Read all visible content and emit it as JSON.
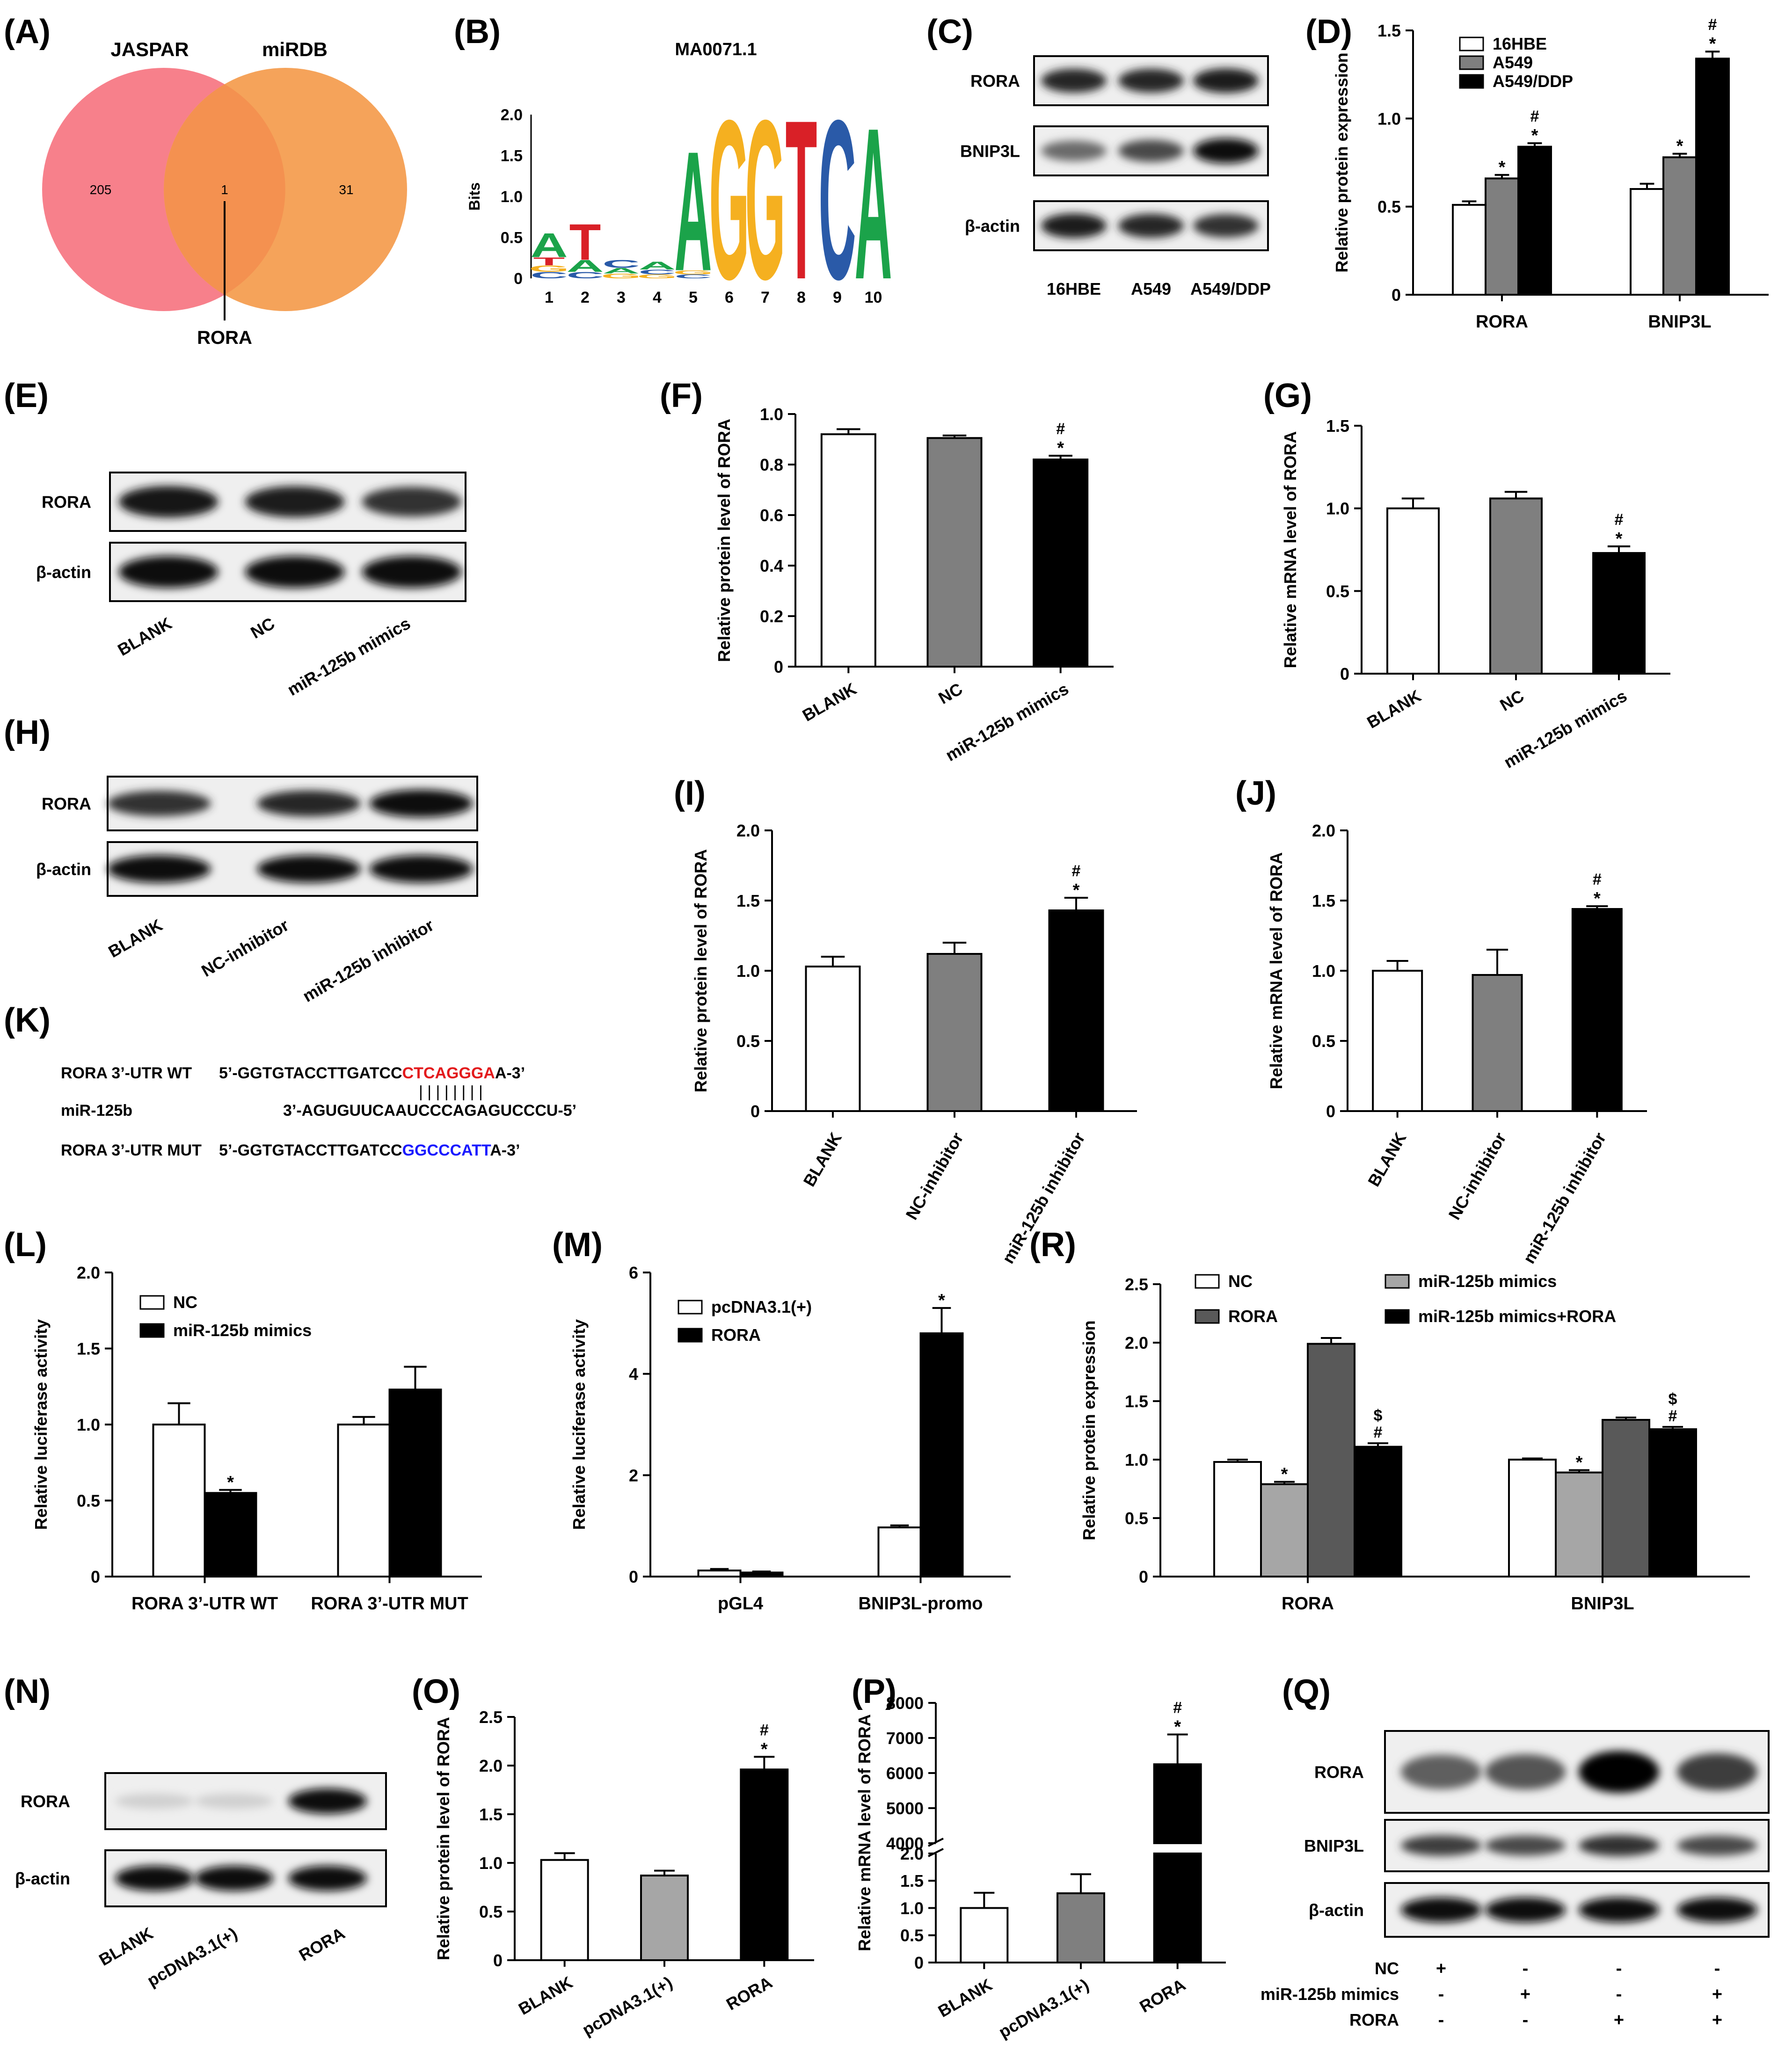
{
  "figure": {
    "panel_labels": [
      "(A)",
      "(B)",
      "(C)",
      "(D)",
      "(E)",
      "(F)",
      "(G)",
      "(H)",
      "(I)",
      "(J)",
      "(K)",
      "(L)",
      "(M)",
      "(R)",
      "(N)",
      "(O)",
      "(P)",
      "(Q)"
    ]
  },
  "colors": {
    "white": "#ffffff",
    "grey": "#7f7f7f",
    "light_grey": "#a6a6a6",
    "dark_grey": "#595959",
    "black": "#000000",
    "venn_left": "#f7808b",
    "venn_right": "#f5a35a",
    "venn_overlap": "#f49150",
    "mut_blue": "#1a1aff",
    "seed_red": "#e31a1c"
  },
  "venn": {
    "left_label": "JASPAR",
    "right_label": "miRDB",
    "left_only": "205",
    "overlap": "1",
    "right_only": "31",
    "callout": "RORA"
  },
  "logo": {
    "title": "MA0071.1",
    "ylabel": "Bits",
    "yticks": [
      "0",
      "0.5",
      "1.0",
      "1.5",
      "2.0"
    ],
    "positions": [
      "1",
      "2",
      "3",
      "4",
      "5",
      "6",
      "7",
      "8",
      "9",
      "10"
    ],
    "letters": [
      {
        "pos": 1,
        "stack": [
          {
            "ch": "C",
            "bits": 0.08
          },
          {
            "ch": "G",
            "bits": 0.08
          },
          {
            "ch": "T",
            "bits": 0.1
          },
          {
            "ch": "A",
            "bits": 0.3
          }
        ]
      },
      {
        "pos": 2,
        "stack": [
          {
            "ch": "C",
            "bits": 0.08
          },
          {
            "ch": "A",
            "bits": 0.15
          },
          {
            "ch": "T",
            "bits": 0.45
          }
        ]
      },
      {
        "pos": 3,
        "stack": [
          {
            "ch": "G",
            "bits": 0.06
          },
          {
            "ch": "A",
            "bits": 0.07
          },
          {
            "ch": "C",
            "bits": 0.1
          }
        ]
      },
      {
        "pos": 4,
        "stack": [
          {
            "ch": "G",
            "bits": 0.05
          },
          {
            "ch": "C",
            "bits": 0.06
          },
          {
            "ch": "A",
            "bits": 0.1
          }
        ]
      },
      {
        "pos": 5,
        "stack": [
          {
            "ch": "C",
            "bits": 0.05
          },
          {
            "ch": "G",
            "bits": 0.05
          },
          {
            "ch": "A",
            "bits": 1.5
          }
        ]
      },
      {
        "pos": 6,
        "stack": [
          {
            "ch": "G",
            "bits": 2.0
          }
        ]
      },
      {
        "pos": 7,
        "stack": [
          {
            "ch": "G",
            "bits": 2.0
          }
        ]
      },
      {
        "pos": 8,
        "stack": [
          {
            "ch": "T",
            "bits": 2.0
          }
        ]
      },
      {
        "pos": 9,
        "stack": [
          {
            "ch": "C",
            "bits": 2.0
          }
        ]
      },
      {
        "pos": 10,
        "stack": [
          {
            "ch": "A",
            "bits": 1.9
          }
        ]
      }
    ],
    "letter_colors": {
      "A": "#1ba34a",
      "C": "#2a5aa8",
      "G": "#f5b020",
      "T": "#d92027"
    }
  },
  "blots": {
    "C": {
      "rows": [
        "RORA",
        "BNIP3L",
        "β-actin"
      ],
      "lanes": [
        "16HBE",
        "A549",
        "A549/DDP"
      ]
    },
    "E": {
      "rows": [
        "RORA",
        "β-actin"
      ],
      "lanes": [
        "BLANK",
        "NC",
        "miR-125b mimics"
      ]
    },
    "H": {
      "rows": [
        "RORA",
        "β-actin"
      ],
      "lanes": [
        "BLANK",
        "NC-inhibitor",
        "miR-125b inhibitor"
      ]
    },
    "N": {
      "rows": [
        "RORA",
        "β-actin"
      ],
      "lanes": [
        "BLANK",
        "pcDNA3.1(+)",
        "RORA"
      ]
    },
    "Q": {
      "rows": [
        "RORA",
        "BNIP3L",
        "β-actin"
      ],
      "conditions": [
        {
          "label": "NC",
          "marks": [
            "+",
            "-",
            "-",
            "-"
          ]
        },
        {
          "label": "miR-125b mimics",
          "marks": [
            "-",
            "+",
            "-",
            "+"
          ]
        },
        {
          "label": "RORA",
          "marks": [
            "-",
            "-",
            "+",
            "+"
          ]
        }
      ]
    }
  },
  "sequences": {
    "wt_label": "RORA 3’-UTR WT",
    "wt_prefix": "5’-GGTGTACCTTGATCC",
    "wt_seed": "CTCAGGGA",
    "wt_suffix": "A-3’",
    "mir_label": "miR-125b",
    "mir_seq": "3’-AGUGUUCAAUCCCAGAGUCCCU-5’",
    "pairing": "| | | | | | | |",
    "mut_label": "RORA 3’-UTR MUT",
    "mut_prefix": "5’-GGTGTACCTTGATCC",
    "mut_seed": "GGCCCATT",
    "mut_suffix": "A-3’"
  },
  "chart_data": [
    {
      "panel": "D",
      "type": "bar",
      "ylabel": "Relative protein expression",
      "ylim": [
        0,
        1.5
      ],
      "yticks": [
        "0",
        "0.5",
        "1.0",
        "1.5"
      ],
      "categories": [
        "RORA",
        "BNIP3L"
      ],
      "series": [
        {
          "name": "16HBE",
          "fill": "white",
          "values": [
            0.51,
            0.6
          ],
          "errors": [
            0.02,
            0.03
          ],
          "marks": [
            "",
            ""
          ]
        },
        {
          "name": "A549",
          "fill": "grey",
          "values": [
            0.66,
            0.78
          ],
          "errors": [
            0.02,
            0.02
          ],
          "marks": [
            "*",
            "*"
          ]
        },
        {
          "name": "A549/DDP",
          "fill": "black",
          "values": [
            0.84,
            1.34
          ],
          "errors": [
            0.02,
            0.04
          ],
          "marks": [
            "*#",
            "*#"
          ]
        }
      ]
    },
    {
      "panel": "F",
      "type": "bar",
      "ylabel": "Relative protein level of RORA",
      "ylim": [
        0,
        1.0
      ],
      "yticks": [
        "0",
        "0.2",
        "0.4",
        "0.6",
        "0.8",
        "1.0"
      ],
      "categories": [
        "BLANK",
        "NC",
        "miR-125b mimics"
      ],
      "values": [
        0.92,
        0.905,
        0.82
      ],
      "errors": [
        0.02,
        0.01,
        0.015
      ],
      "fills": [
        "white",
        "grey",
        "black"
      ],
      "marks": [
        "",
        "",
        "*#"
      ]
    },
    {
      "panel": "G",
      "type": "bar",
      "ylabel": "Relative mRNA level of RORA",
      "ylim": [
        0,
        1.5
      ],
      "yticks": [
        "0",
        "0.5",
        "1.0",
        "1.5"
      ],
      "categories": [
        "BLANK",
        "NC",
        "miR-125b mimics"
      ],
      "values": [
        1.0,
        1.06,
        0.73
      ],
      "errors": [
        0.06,
        0.04,
        0.04
      ],
      "fills": [
        "white",
        "grey",
        "black"
      ],
      "marks": [
        "",
        "",
        "*#"
      ]
    },
    {
      "panel": "I",
      "type": "bar",
      "ylabel": "Relative protein level of RORA",
      "ylim": [
        0,
        2.0
      ],
      "yticks": [
        "0",
        "0.5",
        "1.0",
        "1.5",
        "2.0"
      ],
      "categories": [
        "BLANK",
        "NC-inhibitor",
        "miR-125b inhibitor"
      ],
      "values": [
        1.03,
        1.12,
        1.43
      ],
      "errors": [
        0.07,
        0.08,
        0.09
      ],
      "fills": [
        "white",
        "grey",
        "black"
      ],
      "marks": [
        "",
        "",
        "*#"
      ]
    },
    {
      "panel": "J",
      "type": "bar",
      "ylabel": "Relative mRNA level of RORA",
      "ylim": [
        0,
        2.0
      ],
      "yticks": [
        "0",
        "0.5",
        "1.0",
        "1.5",
        "2.0"
      ],
      "categories": [
        "BLANK",
        "NC-inhibitor",
        "miR-125b inhibitor"
      ],
      "values": [
        1.0,
        0.97,
        1.44
      ],
      "errors": [
        0.07,
        0.18,
        0.02
      ],
      "fills": [
        "white",
        "grey",
        "black"
      ],
      "marks": [
        "",
        "",
        "*#"
      ]
    },
    {
      "panel": "L",
      "type": "bar",
      "ylabel": "Relative luciferase activity",
      "ylim": [
        0,
        2.0
      ],
      "yticks": [
        "0",
        "0.5",
        "1.0",
        "1.5",
        "2.0"
      ],
      "categories": [
        "RORA 3’-UTR WT",
        "RORA 3’-UTR MUT"
      ],
      "series": [
        {
          "name": "NC",
          "fill": "white",
          "values": [
            1.0,
            1.0
          ],
          "errors": [
            0.14,
            0.05
          ],
          "marks": [
            "",
            ""
          ]
        },
        {
          "name": "miR-125b mimics",
          "fill": "black",
          "values": [
            0.55,
            1.23
          ],
          "errors": [
            0.02,
            0.15
          ],
          "marks": [
            "*",
            ""
          ]
        }
      ]
    },
    {
      "panel": "M",
      "type": "bar",
      "ylabel": "Relative luciferase activity",
      "ylim": [
        0,
        6
      ],
      "yticks": [
        "0",
        "2",
        "4",
        "6"
      ],
      "categories": [
        "pGL4",
        "BNIP3L-promo"
      ],
      "series": [
        {
          "name": "pcDNA3.1(+)",
          "fill": "white",
          "values": [
            0.12,
            0.97
          ],
          "errors": [
            0.03,
            0.04
          ],
          "marks": [
            "",
            ""
          ]
        },
        {
          "name": "RORA",
          "fill": "black",
          "values": [
            0.08,
            4.8
          ],
          "errors": [
            0.02,
            0.5
          ],
          "marks": [
            "",
            "*"
          ]
        }
      ]
    },
    {
      "panel": "R",
      "type": "bar",
      "ylabel": "Relative protein expression",
      "ylim": [
        0,
        2.5
      ],
      "yticks": [
        "0",
        "0.5",
        "1.0",
        "1.5",
        "2.0",
        "2.5"
      ],
      "categories": [
        "RORA",
        "BNIP3L"
      ],
      "series": [
        {
          "name": "NC",
          "fill": "white",
          "values": [
            0.98,
            1.0
          ],
          "errors": [
            0.02,
            0.01
          ],
          "marks": [
            "",
            ""
          ]
        },
        {
          "name": "miR-125b mimics",
          "fill": "light_grey",
          "values": [
            0.79,
            0.89
          ],
          "errors": [
            0.02,
            0.02
          ],
          "marks": [
            "*",
            "*"
          ]
        },
        {
          "name": "RORA",
          "fill": "dark_grey",
          "values": [
            1.99,
            1.34
          ],
          "errors": [
            0.05,
            0.02
          ],
          "marks": [
            "",
            ""
          ]
        },
        {
          "name": "miR-125b mimics+RORA",
          "fill": "black",
          "values": [
            1.11,
            1.26
          ],
          "errors": [
            0.03,
            0.02
          ],
          "marks": [
            "#$",
            "#$"
          ]
        }
      ],
      "legend_order": [
        0,
        2,
        1,
        3
      ]
    },
    {
      "panel": "O",
      "type": "bar",
      "ylabel": "Relative protein level of RORA",
      "ylim": [
        0,
        2.5
      ],
      "yticks": [
        "0",
        "0.5",
        "1.0",
        "1.5",
        "2.0",
        "2.5"
      ],
      "categories": [
        "BLANK",
        "pcDNA3.1(+)",
        "RORA"
      ],
      "values": [
        1.03,
        0.87,
        1.96
      ],
      "errors": [
        0.07,
        0.05,
        0.13
      ],
      "fills": [
        "white",
        "light_grey",
        "black"
      ],
      "marks": [
        "",
        "",
        "*#"
      ]
    },
    {
      "panel": "P",
      "type": "bar",
      "ylabel": "Relative mRNA level of RORA",
      "broken": true,
      "lower_ylim": [
        0,
        2.0
      ],
      "upper_ylim": [
        4000,
        8000
      ],
      "yticks_lower": [
        "0",
        "0.5",
        "1.0",
        "1.5",
        "2.0"
      ],
      "yticks_upper": [
        "4000",
        "5000",
        "6000",
        "7000",
        "8000"
      ],
      "categories": [
        "BLANK",
        "pcDNA3.1(+)",
        "RORA"
      ],
      "values": [
        1.0,
        1.27,
        6250
      ],
      "errors": [
        0.28,
        0.35,
        850
      ],
      "fills": [
        "white",
        "grey",
        "black"
      ],
      "marks": [
        "",
        "",
        "*#"
      ]
    }
  ]
}
